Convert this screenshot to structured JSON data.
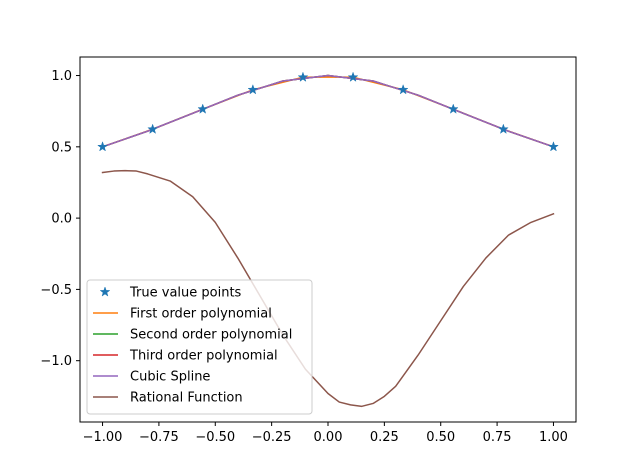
{
  "chart_data": {
    "type": "line",
    "title": "",
    "xlabel": "",
    "ylabel": "",
    "xlim": [
      -1.1,
      1.1
    ],
    "ylim": [
      -1.43,
      1.13
    ],
    "grid": false,
    "legend_placement": "lower-left",
    "x_ticks": [
      -1.0,
      -0.75,
      -0.5,
      -0.25,
      0.0,
      0.25,
      0.5,
      0.75,
      1.0
    ],
    "x_tick_labels": [
      "−1.00",
      "−0.75",
      "−0.50",
      "−0.25",
      "0.00",
      "0.25",
      "0.50",
      "0.75",
      "1.00"
    ],
    "y_ticks": [
      -1.0,
      -0.5,
      0.0,
      0.5,
      1.0
    ],
    "y_tick_labels": [
      "−1.0",
      "−0.5",
      "0.0",
      "0.5",
      "1.0"
    ],
    "points": {
      "name": "True value points",
      "color": "#1f77b4",
      "marker": "star",
      "x": [
        -1.0,
        -0.7778,
        -0.5556,
        -0.3333,
        -0.1111,
        0.1111,
        0.3333,
        0.5556,
        0.7778,
        1.0
      ],
      "y": [
        0.5,
        0.6231,
        0.7642,
        0.9,
        0.9878,
        0.9878,
        0.9,
        0.7642,
        0.6231,
        0.5
      ]
    },
    "series": [
      {
        "name": "First order polynomial",
        "color": "#ff7f0e",
        "x": [
          -1.0,
          -0.7778,
          -0.5556,
          -0.3333,
          -0.1111,
          0.0,
          0.1111,
          0.3333,
          0.5556,
          0.7778,
          1.0
        ],
        "y": [
          0.5,
          0.6231,
          0.7642,
          0.9,
          0.9878,
          0.99,
          0.9878,
          0.9,
          0.7642,
          0.6231,
          0.5
        ]
      },
      {
        "name": "Second order polynomial",
        "color": "#2ca02c",
        "x": [
          -1.0,
          -0.8,
          -0.6,
          -0.4,
          -0.2,
          0.0,
          0.2,
          0.4,
          0.6,
          0.8,
          1.0
        ],
        "y": [
          0.5,
          0.6098,
          0.7353,
          0.8621,
          0.9615,
          1.0,
          0.9615,
          0.8621,
          0.7353,
          0.6098,
          0.5
        ]
      },
      {
        "name": "Third order polynomial",
        "color": "#d62728",
        "x": [
          -1.0,
          -0.8,
          -0.6,
          -0.4,
          -0.2,
          0.0,
          0.2,
          0.4,
          0.6,
          0.8,
          1.0
        ],
        "y": [
          0.5,
          0.6098,
          0.7353,
          0.8621,
          0.9615,
          1.0,
          0.9615,
          0.8621,
          0.7353,
          0.6098,
          0.5
        ]
      },
      {
        "name": "Cubic Spline",
        "color": "#9467bd",
        "x": [
          -1.0,
          -0.8,
          -0.6,
          -0.4,
          -0.2,
          0.0,
          0.2,
          0.4,
          0.6,
          0.8,
          1.0
        ],
        "y": [
          0.5,
          0.6098,
          0.7353,
          0.8621,
          0.9615,
          1.0,
          0.9615,
          0.8621,
          0.7353,
          0.6098,
          0.5
        ]
      },
      {
        "name": "Rational Function",
        "color": "#8c564b",
        "x": [
          -1.0,
          -0.95,
          -0.9,
          -0.85,
          -0.8,
          -0.7,
          -0.6,
          -0.5,
          -0.4,
          -0.3,
          -0.2,
          -0.1,
          0.0,
          0.05,
          0.1,
          0.15,
          0.2,
          0.25,
          0.3,
          0.4,
          0.5,
          0.6,
          0.7,
          0.8,
          0.9,
          1.0
        ],
        "y": [
          0.32,
          0.33,
          0.333,
          0.33,
          0.31,
          0.26,
          0.15,
          -0.03,
          -0.28,
          -0.55,
          -0.82,
          -1.06,
          -1.23,
          -1.29,
          -1.31,
          -1.32,
          -1.3,
          -1.25,
          -1.18,
          -0.96,
          -0.72,
          -0.48,
          -0.28,
          -0.12,
          -0.03,
          0.03
        ]
      }
    ]
  }
}
